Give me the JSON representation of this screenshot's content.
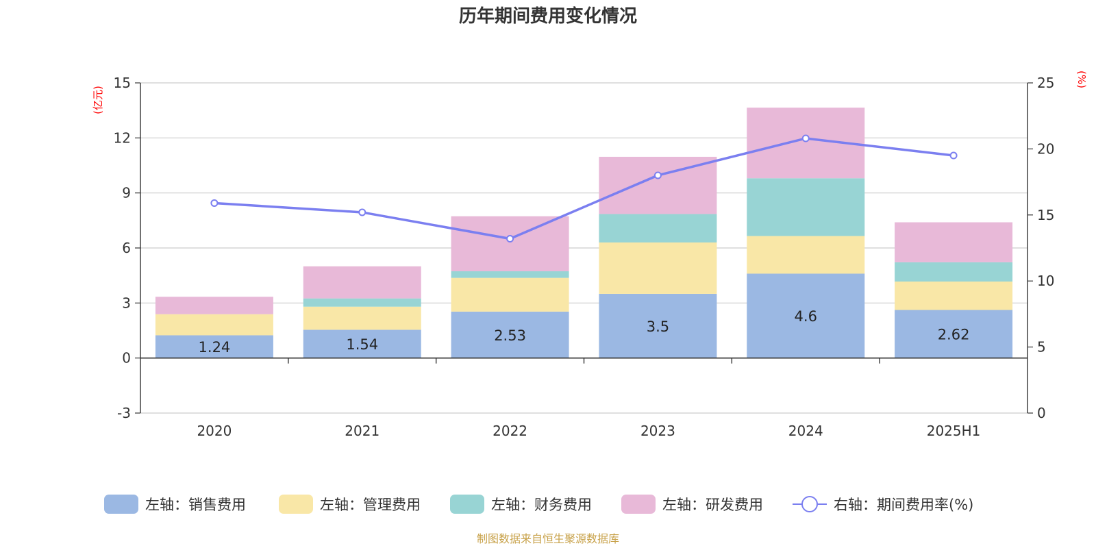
{
  "chart_data": {
    "type": "bar",
    "title": "历年期间费用变化情况",
    "categories": [
      "2020",
      "2021",
      "2022",
      "2023",
      "2024",
      "2025H1"
    ],
    "left_axis": {
      "unit": "(亿元)",
      "ylim": [
        -3,
        15
      ],
      "ticks": [
        -3,
        0,
        3,
        6,
        9,
        12,
        15
      ]
    },
    "right_axis": {
      "unit": "(%)",
      "ylim": [
        0,
        25
      ],
      "ticks": [
        0,
        5,
        10,
        15,
        20,
        25
      ]
    },
    "series": [
      {
        "name": "左轴：销售费用",
        "type": "bar",
        "stack": "total",
        "color": "#9bb8e3",
        "values": [
          1.24,
          1.54,
          2.53,
          3.5,
          4.6,
          2.62
        ],
        "labels": [
          "1.24",
          "1.54",
          "2.53",
          "3.5",
          "4.6",
          "2.62"
        ]
      },
      {
        "name": "左轴：管理费用",
        "type": "bar",
        "stack": "total",
        "color": "#f9e7a7",
        "values": [
          1.15,
          1.26,
          1.84,
          2.8,
          2.05,
          1.55
        ]
      },
      {
        "name": "左轴：财务费用",
        "type": "bar",
        "stack": "total",
        "color": "#98d4d4",
        "values": [
          0.0,
          0.45,
          0.36,
          1.55,
          3.15,
          1.05
        ]
      },
      {
        "name": "左轴：研发费用",
        "type": "bar",
        "stack": "total",
        "color": "#e8b9d8",
        "values": [
          0.95,
          1.75,
          3.0,
          3.12,
          3.85,
          2.18
        ]
      },
      {
        "name": "右轴：期间费用率(%)",
        "type": "line",
        "axis": "right",
        "color": "#7b7ff0",
        "values": [
          15.9,
          15.2,
          13.2,
          18.0,
          20.8,
          19.5
        ]
      }
    ],
    "grid": true,
    "legend_position": "bottom"
  },
  "source_note": "制图数据来自恒生聚源数据库"
}
